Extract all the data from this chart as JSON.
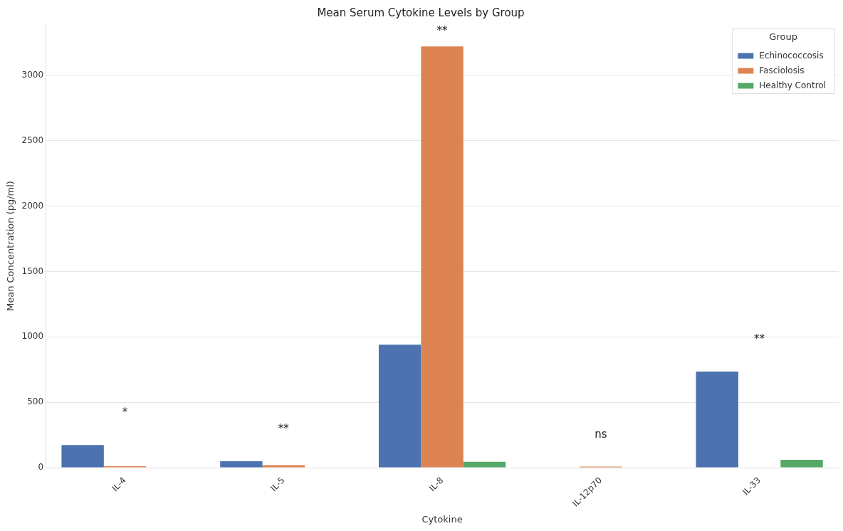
{
  "chart_data": {
    "type": "bar",
    "title": "Mean Serum Cytokine Levels by Group",
    "xlabel": "Cytokine",
    "ylabel": "Mean Concentration (pg/ml)",
    "legend_title": "Group",
    "categories": [
      "IL-4",
      "IL-5",
      "IL-8",
      "IL-12p70",
      "IL-33"
    ],
    "series": [
      {
        "name": "Echinococcosis",
        "color": "#4c72b0",
        "values": [
          173,
          50,
          940,
          null,
          735
        ]
      },
      {
        "name": "Fasciolosis",
        "color": "#dd8452",
        "values": [
          12,
          20,
          3220,
          8,
          null
        ]
      },
      {
        "name": "Healthy Control",
        "color": "#55a868",
        "values": [
          null,
          null,
          45,
          null,
          60
        ]
      }
    ],
    "annotations": [
      "*",
      "**",
      "**",
      "ns",
      "**"
    ],
    "ylim": [
      0,
      3390
    ],
    "yticks": [
      0,
      500,
      1000,
      1500,
      2000,
      2500,
      3000
    ],
    "grid": "y",
    "legend": "top right"
  }
}
